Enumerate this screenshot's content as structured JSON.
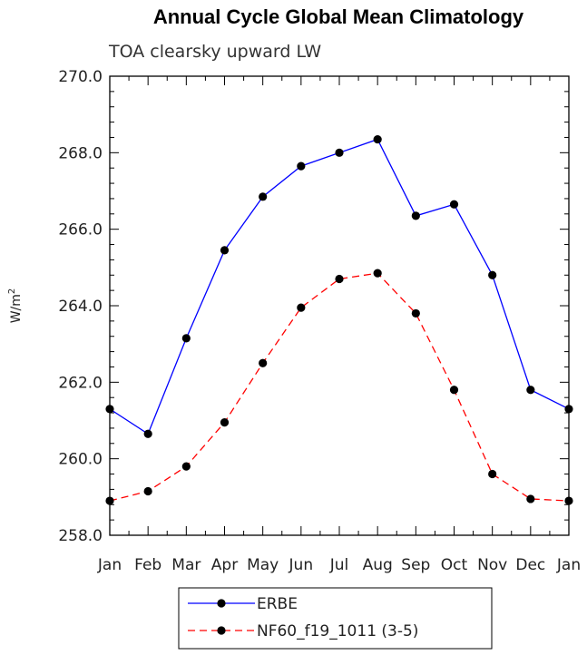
{
  "chart_data": {
    "type": "line",
    "title": "Annual Cycle Global Mean Climatology",
    "subtitle": "TOA clearsky upward LW",
    "ylabel": "W/m",
    "ylabel_superscript": "2",
    "xlabel": "",
    "categories": [
      "Jan",
      "Feb",
      "Mar",
      "Apr",
      "May",
      "Jun",
      "Jul",
      "Aug",
      "Sep",
      "Oct",
      "Nov",
      "Dec",
      "Jan"
    ],
    "ylim": [
      258.0,
      270.0
    ],
    "yticks": [
      "258.0",
      "260.0",
      "262.0",
      "264.0",
      "266.0",
      "268.0",
      "270.0"
    ],
    "series": [
      {
        "name": "ERBE",
        "color": "#0000ff",
        "dash": "solid",
        "values": [
          261.3,
          260.65,
          263.15,
          265.45,
          266.85,
          267.65,
          268.0,
          268.35,
          266.35,
          266.65,
          264.8,
          261.8,
          261.3
        ]
      },
      {
        "name": "NF60_f19_1011 (3-5)",
        "color": "#ff0000",
        "dash": "dashed",
        "values": [
          258.9,
          259.15,
          259.8,
          260.95,
          262.5,
          263.95,
          264.7,
          264.85,
          263.8,
          261.8,
          259.6,
          258.95,
          258.9
        ]
      }
    ],
    "legend_position": "bottom-left"
  }
}
